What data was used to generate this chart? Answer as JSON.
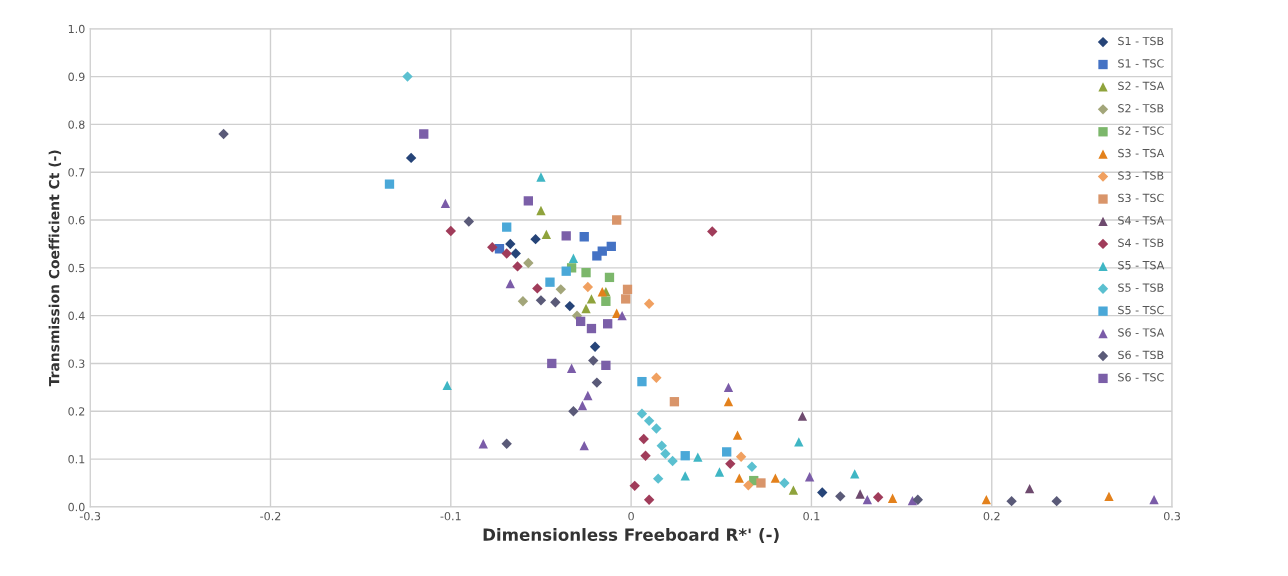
{
  "chart_data": {
    "type": "scatter",
    "xlabel": "Dimensionless Freeboard R*' (-)",
    "ylabel": "Transmission Coefficient Ct (-)",
    "xlim": [
      -0.3,
      0.3
    ],
    "xticks": [
      -0.3,
      -0.2,
      -0.1,
      0,
      0.1,
      0.2,
      0.3
    ],
    "ylim": [
      0,
      1.0
    ],
    "yticks": [
      {
        "value": 0,
        "label": "0.0"
      },
      0.1,
      0.2,
      0.3,
      0.4,
      0.5,
      0.6,
      0.7,
      0.8,
      0.9,
      {
        "value": 1.0,
        "label": "1.0"
      }
    ],
    "grid": true,
    "legend": "top right",
    "series": [
      {
        "name": "S1 - TSB",
        "color": "#264478",
        "marker": "diamond",
        "x": [
          -0.122,
          -0.053,
          -0.067,
          -0.064,
          -0.034,
          -0.02,
          0.106
        ],
        "values": [
          0.73,
          0.56,
          0.55,
          0.53,
          0.42,
          0.335,
          0.03
        ]
      },
      {
        "name": "S1 - TSC",
        "color": "#4472c4",
        "marker": "square",
        "x": [
          -0.026,
          -0.011,
          -0.016,
          -0.019,
          -0.073
        ],
        "values": [
          0.565,
          0.545,
          0.535,
          0.525,
          0.54
        ]
      },
      {
        "name": "S2 - TSA",
        "color": "#8fa33c",
        "marker": "triangle",
        "x": [
          -0.05,
          -0.047,
          -0.022,
          -0.025,
          -0.014,
          0.09
        ],
        "values": [
          0.62,
          0.57,
          0.435,
          0.415,
          0.45,
          0.035
        ]
      },
      {
        "name": "S2 - TSB",
        "color": "#a3a67a",
        "marker": "diamond",
        "x": [
          -0.057,
          -0.039,
          -0.06,
          -0.03
        ],
        "values": [
          0.51,
          0.455,
          0.43,
          0.4
        ]
      },
      {
        "name": "S2 - TSC",
        "color": "#7cb76b",
        "marker": "square",
        "x": [
          -0.033,
          -0.025,
          -0.012,
          -0.014,
          0.068
        ],
        "values": [
          0.5,
          0.49,
          0.48,
          0.43,
          0.055
        ]
      },
      {
        "name": "S3 - TSA",
        "color": "#e3811c",
        "marker": "triangle",
        "x": [
          -0.016,
          -0.008,
          0.054,
          0.059,
          0.06,
          0.08,
          0.145,
          0.197,
          0.265
        ],
        "values": [
          0.45,
          0.405,
          0.22,
          0.15,
          0.06,
          0.06,
          0.018,
          0.015,
          0.022
        ]
      },
      {
        "name": "S3 - TSB",
        "color": "#f0a060",
        "marker": "diamond",
        "x": [
          -0.024,
          0.01,
          0.014,
          0.061,
          0.065
        ],
        "values": [
          0.46,
          0.425,
          0.27,
          0.105,
          0.045
        ]
      },
      {
        "name": "S3 - TSC",
        "color": "#d9956a",
        "marker": "square",
        "x": [
          -0.008,
          -0.002,
          -0.003,
          0.024,
          0.072
        ],
        "values": [
          0.6,
          0.455,
          0.435,
          0.22,
          0.05
        ]
      },
      {
        "name": "S4 - TSA",
        "color": "#6e4a6e",
        "marker": "triangle",
        "x": [
          0.095,
          0.127,
          0.221
        ],
        "values": [
          0.19,
          0.027,
          0.038
        ]
      },
      {
        "name": "S4 - TSB",
        "color": "#a03c5a",
        "marker": "diamond",
        "x": [
          -0.1,
          -0.077,
          -0.063,
          -0.069,
          -0.052,
          0.045,
          0.007,
          0.008,
          0.002,
          0.01,
          0.055,
          0.137
        ],
        "values": [
          0.577,
          0.543,
          0.503,
          0.53,
          0.457,
          0.576,
          0.142,
          0.107,
          0.044,
          0.015,
          0.09,
          0.02
        ]
      },
      {
        "name": "S5 - TSA",
        "color": "#3fb6c4",
        "marker": "triangle",
        "x": [
          -0.05,
          -0.102,
          -0.032,
          0.037,
          0.093,
          0.124,
          0.03,
          0.049
        ],
        "values": [
          0.69,
          0.254,
          0.52,
          0.104,
          0.136,
          0.069,
          0.065,
          0.073
        ]
      },
      {
        "name": "S5 - TSB",
        "color": "#5bc0d0",
        "marker": "diamond",
        "x": [
          -0.124,
          0.006,
          0.01,
          0.014,
          0.017,
          0.019,
          0.023,
          0.015,
          0.067,
          0.085
        ],
        "values": [
          0.9,
          0.195,
          0.18,
          0.164,
          0.128,
          0.111,
          0.096,
          0.059,
          0.084,
          0.05
        ]
      },
      {
        "name": "S5 - TSC",
        "color": "#4aa8d8",
        "marker": "square",
        "x": [
          -0.134,
          -0.069,
          -0.036,
          -0.045,
          0.006,
          0.03,
          0.053
        ],
        "values": [
          0.675,
          0.585,
          0.493,
          0.47,
          0.262,
          0.107,
          0.115
        ]
      },
      {
        "name": "S6 - TSA",
        "color": "#7b5ca8",
        "marker": "triangle",
        "x": [
          -0.103,
          -0.067,
          -0.005,
          -0.033,
          -0.024,
          -0.027,
          -0.082,
          -0.026,
          0.054,
          0.099,
          0.131,
          0.156,
          0.29
        ],
        "values": [
          0.635,
          0.467,
          0.4,
          0.29,
          0.233,
          0.212,
          0.132,
          0.128,
          0.25,
          0.063,
          0.015,
          0.013,
          0.015
        ]
      },
      {
        "name": "S6 - TSB",
        "color": "#5a5a78",
        "marker": "diamond",
        "x": [
          -0.226,
          -0.09,
          -0.05,
          -0.042,
          -0.021,
          -0.019,
          -0.032,
          -0.069,
          0.116,
          0.159,
          0.211,
          0.236
        ],
        "values": [
          0.78,
          0.597,
          0.432,
          0.428,
          0.306,
          0.26,
          0.2,
          0.132,
          0.022,
          0.015,
          0.012,
          0.012
        ]
      },
      {
        "name": "S6 - TSC",
        "color": "#7b5fa8",
        "marker": "square",
        "x": [
          -0.115,
          -0.057,
          -0.036,
          -0.028,
          -0.013,
          -0.022,
          -0.044,
          -0.014
        ],
        "values": [
          0.78,
          0.64,
          0.567,
          0.388,
          0.383,
          0.373,
          0.3,
          0.296
        ]
      }
    ]
  }
}
